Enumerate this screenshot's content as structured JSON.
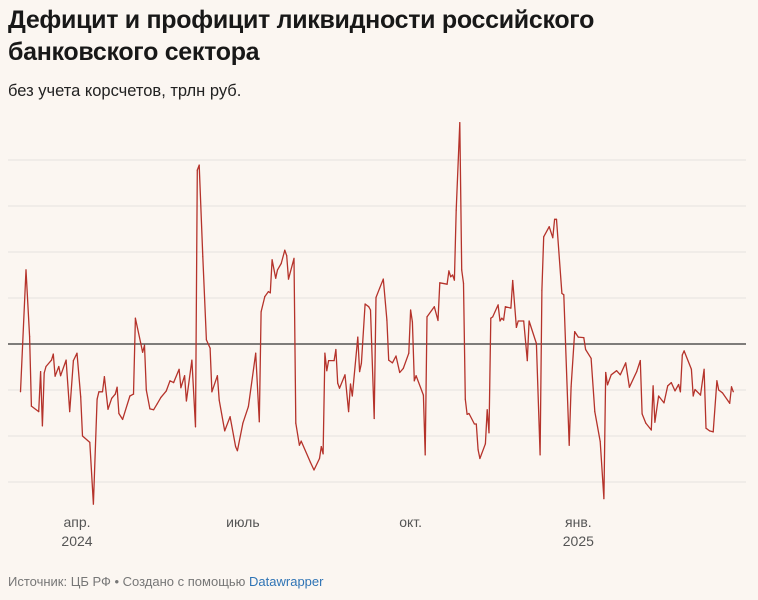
{
  "title": "Дефицит и профицит ликвидности российского банковского сектора",
  "subtitle": "без учета корсчетов, трлн руб.",
  "footer": {
    "source": "Источник: ЦБ РФ • Создано с помощью ",
    "tool_link": "Datawrapper"
  },
  "colors": {
    "line": "#b5332b",
    "zero_line": "#333333",
    "grid": "#e6e2df",
    "background": "#fbf6f1",
    "link": "#2f74b5"
  },
  "chart_data": {
    "type": "line",
    "title": "Дефицит и профицит ликвидности российского банковского сектора",
    "subtitle": "без учета корсчетов, трлн руб.",
    "xlabel": "",
    "ylabel": "",
    "xlim": [
      "2024-03-01",
      "2025-03-27"
    ],
    "ylim": [
      -3.5,
      4.9
    ],
    "y_gridlines": [
      -3,
      -2,
      -1,
      0,
      1,
      2,
      3,
      4
    ],
    "y_tick_labels_shown": false,
    "grid": true,
    "x_ticks": [
      {
        "date": "2024-04-01",
        "label": "апр.",
        "year": "2024"
      },
      {
        "date": "2024-07-01",
        "label": "июль",
        "year": ""
      },
      {
        "date": "2024-10-01",
        "label": "окт.",
        "year": ""
      },
      {
        "date": "2025-01-01",
        "label": "янв.",
        "year": "2025"
      }
    ],
    "series": [
      {
        "points": [
          [
            "2024-03-01",
            -1.04
          ],
          [
            "2024-03-04",
            1.61
          ],
          [
            "2024-03-06",
            0.16
          ],
          [
            "2024-03-07",
            -1.35
          ],
          [
            "2024-03-11",
            -1.47
          ],
          [
            "2024-03-12",
            -0.6
          ],
          [
            "2024-03-13",
            -1.78
          ],
          [
            "2024-03-14",
            -0.63
          ],
          [
            "2024-03-15",
            -0.49
          ],
          [
            "2024-03-18",
            -0.35
          ],
          [
            "2024-03-19",
            -0.22
          ],
          [
            "2024-03-20",
            -0.7
          ],
          [
            "2024-03-22",
            -0.49
          ],
          [
            "2024-03-23",
            -0.69
          ],
          [
            "2024-03-26",
            -0.35
          ],
          [
            "2024-03-28",
            -1.47
          ],
          [
            "2024-03-30",
            -0.36
          ],
          [
            "2024-04-01",
            -0.2
          ],
          [
            "2024-04-03",
            -1.15
          ],
          [
            "2024-04-04",
            -2.0
          ],
          [
            "2024-04-08",
            -2.14
          ],
          [
            "2024-04-10",
            -3.48
          ],
          [
            "2024-04-12",
            -1.2
          ],
          [
            "2024-04-13",
            -1.04
          ],
          [
            "2024-04-15",
            -1.04
          ],
          [
            "2024-04-16",
            -0.71
          ],
          [
            "2024-04-18",
            -1.42
          ],
          [
            "2024-04-20",
            -1.18
          ],
          [
            "2024-04-22",
            -1.09
          ],
          [
            "2024-04-23",
            -0.94
          ],
          [
            "2024-04-24",
            -1.51
          ],
          [
            "2024-04-26",
            -1.64
          ],
          [
            "2024-04-30",
            -1.13
          ],
          [
            "2024-05-02",
            -1.09
          ],
          [
            "2024-05-03",
            0.56
          ],
          [
            "2024-05-06",
            0.01
          ],
          [
            "2024-05-07",
            -0.18
          ],
          [
            "2024-05-08",
            -0.03
          ],
          [
            "2024-05-09",
            -1.0
          ],
          [
            "2024-05-11",
            -1.41
          ],
          [
            "2024-05-13",
            -1.43
          ],
          [
            "2024-05-15",
            -1.3
          ],
          [
            "2024-05-17",
            -1.16
          ],
          [
            "2024-05-20",
            -1.02
          ],
          [
            "2024-05-22",
            -0.8
          ],
          [
            "2024-05-24",
            -0.84
          ],
          [
            "2024-05-27",
            -0.55
          ],
          [
            "2024-05-28",
            -0.95
          ],
          [
            "2024-05-30",
            -0.69
          ],
          [
            "2024-05-31",
            -1.24
          ],
          [
            "2024-06-03",
            -0.35
          ],
          [
            "2024-06-05",
            -1.8
          ],
          [
            "2024-06-06",
            3.78
          ],
          [
            "2024-06-07",
            3.89
          ],
          [
            "2024-06-09",
            1.9
          ],
          [
            "2024-06-11",
            0.09
          ],
          [
            "2024-06-13",
            -0.09
          ],
          [
            "2024-06-14",
            -1.04
          ],
          [
            "2024-06-17",
            -0.69
          ],
          [
            "2024-06-18",
            -1.22
          ],
          [
            "2024-06-21",
            -1.89
          ],
          [
            "2024-06-24",
            -1.58
          ],
          [
            "2024-06-27",
            -2.23
          ],
          [
            "2024-06-28",
            -2.32
          ],
          [
            "2024-07-01",
            -1.72
          ],
          [
            "2024-07-04",
            -1.36
          ],
          [
            "2024-07-08",
            -0.2
          ],
          [
            "2024-07-10",
            -1.69
          ],
          [
            "2024-07-11",
            0.7
          ],
          [
            "2024-07-13",
            1.03
          ],
          [
            "2024-07-15",
            1.14
          ],
          [
            "2024-07-16",
            1.11
          ],
          [
            "2024-07-17",
            1.83
          ],
          [
            "2024-07-19",
            1.43
          ],
          [
            "2024-07-20",
            1.61
          ],
          [
            "2024-07-22",
            1.75
          ],
          [
            "2024-07-24",
            2.04
          ],
          [
            "2024-07-25",
            1.92
          ],
          [
            "2024-07-26",
            1.41
          ],
          [
            "2024-07-29",
            1.86
          ],
          [
            "2024-07-30",
            -1.72
          ],
          [
            "2024-08-01",
            -2.2
          ],
          [
            "2024-08-02",
            -2.11
          ],
          [
            "2024-08-07",
            -2.57
          ],
          [
            "2024-08-09",
            -2.74
          ],
          [
            "2024-08-12",
            -2.49
          ],
          [
            "2024-08-13",
            -2.23
          ],
          [
            "2024-08-14",
            -2.39
          ],
          [
            "2024-08-15",
            -0.2
          ],
          [
            "2024-08-16",
            -0.58
          ],
          [
            "2024-08-17",
            -0.36
          ],
          [
            "2024-08-20",
            -0.36
          ],
          [
            "2024-08-21",
            -0.12
          ],
          [
            "2024-08-22",
            -0.85
          ],
          [
            "2024-08-23",
            -0.96
          ],
          [
            "2024-08-26",
            -0.67
          ],
          [
            "2024-08-28",
            -1.47
          ],
          [
            "2024-08-29",
            -0.87
          ],
          [
            "2024-08-30",
            -1.13
          ],
          [
            "2024-09-02",
            0.15
          ],
          [
            "2024-09-03",
            -0.6
          ],
          [
            "2024-09-04",
            -0.42
          ],
          [
            "2024-09-06",
            0.87
          ],
          [
            "2024-09-08",
            0.81
          ],
          [
            "2024-09-09",
            0.74
          ],
          [
            "2024-09-11",
            -1.62
          ],
          [
            "2024-09-12",
            1.01
          ],
          [
            "2024-09-14",
            1.21
          ],
          [
            "2024-09-16",
            1.41
          ],
          [
            "2024-09-18",
            0.52
          ],
          [
            "2024-09-19",
            -0.35
          ],
          [
            "2024-09-21",
            -0.41
          ],
          [
            "2024-09-23",
            -0.26
          ],
          [
            "2024-09-25",
            -0.62
          ],
          [
            "2024-09-27",
            -0.53
          ],
          [
            "2024-09-30",
            -0.2
          ],
          [
            "2024-10-01",
            0.74
          ],
          [
            "2024-10-02",
            0.48
          ],
          [
            "2024-10-03",
            -0.8
          ],
          [
            "2024-10-04",
            -0.69
          ],
          [
            "2024-10-08",
            -1.11
          ],
          [
            "2024-10-09",
            -2.41
          ],
          [
            "2024-10-10",
            0.59
          ],
          [
            "2024-10-14",
            0.81
          ],
          [
            "2024-10-16",
            0.51
          ],
          [
            "2024-10-17",
            1.33
          ],
          [
            "2024-10-21",
            1.3
          ],
          [
            "2024-10-22",
            1.59
          ],
          [
            "2024-10-23",
            1.46
          ],
          [
            "2024-10-24",
            1.5
          ],
          [
            "2024-10-25",
            1.39
          ],
          [
            "2024-10-26",
            2.91
          ],
          [
            "2024-10-28",
            4.81
          ],
          [
            "2024-10-29",
            1.61
          ],
          [
            "2024-10-30",
            1.32
          ],
          [
            "2024-10-31",
            -1.2
          ],
          [
            "2024-11-01",
            -1.53
          ],
          [
            "2024-11-02",
            -1.51
          ],
          [
            "2024-11-05",
            -1.74
          ],
          [
            "2024-11-06",
            -1.74
          ],
          [
            "2024-11-07",
            -2.3
          ],
          [
            "2024-11-08",
            -2.49
          ],
          [
            "2024-11-11",
            -2.17
          ],
          [
            "2024-11-12",
            -1.43
          ],
          [
            "2024-11-13",
            -1.93
          ],
          [
            "2024-11-14",
            0.56
          ],
          [
            "2024-11-15",
            0.59
          ],
          [
            "2024-11-18",
            0.85
          ],
          [
            "2024-11-19",
            0.5
          ],
          [
            "2024-11-20",
            0.56
          ],
          [
            "2024-11-21",
            0.52
          ],
          [
            "2024-11-22",
            0.81
          ],
          [
            "2024-11-25",
            0.78
          ],
          [
            "2024-11-26",
            1.38
          ],
          [
            "2024-11-28",
            0.36
          ],
          [
            "2024-11-29",
            0.5
          ],
          [
            "2024-12-02",
            0.5
          ],
          [
            "2024-12-04",
            -0.36
          ],
          [
            "2024-12-05",
            0.5
          ],
          [
            "2024-12-09",
            0.01
          ],
          [
            "2024-12-11",
            -2.41
          ],
          [
            "2024-12-12",
            1.17
          ],
          [
            "2024-12-13",
            2.33
          ],
          [
            "2024-12-16",
            2.55
          ],
          [
            "2024-12-18",
            2.31
          ],
          [
            "2024-12-19",
            2.71
          ],
          [
            "2024-12-20",
            2.71
          ],
          [
            "2024-12-23",
            1.1
          ],
          [
            "2024-12-24",
            1.07
          ],
          [
            "2024-12-27",
            -2.2
          ],
          [
            "2024-12-28",
            -0.93
          ],
          [
            "2024-12-30",
            0.27
          ],
          [
            "2025-01-01",
            0.15
          ],
          [
            "2025-01-04",
            0.14
          ],
          [
            "2025-01-05",
            -0.12
          ],
          [
            "2025-01-08",
            -0.31
          ],
          [
            "2025-01-10",
            -1.47
          ],
          [
            "2025-01-13",
            -2.12
          ],
          [
            "2025-01-15",
            -3.36
          ],
          [
            "2025-01-16",
            -0.62
          ],
          [
            "2025-01-17",
            -0.89
          ],
          [
            "2025-01-19",
            -0.67
          ],
          [
            "2025-01-22",
            -0.58
          ],
          [
            "2025-01-24",
            -0.67
          ],
          [
            "2025-01-27",
            -0.41
          ],
          [
            "2025-01-29",
            -0.94
          ],
          [
            "2025-02-02",
            -0.6
          ],
          [
            "2025-02-04",
            -0.36
          ],
          [
            "2025-02-05",
            -1.52
          ],
          [
            "2025-02-07",
            -1.72
          ],
          [
            "2025-02-10",
            -1.87
          ],
          [
            "2025-02-11",
            -0.91
          ],
          [
            "2025-02-12",
            -1.7
          ],
          [
            "2025-02-14",
            -1.13
          ],
          [
            "2025-02-17",
            -1.28
          ],
          [
            "2025-02-19",
            -0.91
          ],
          [
            "2025-02-21",
            -0.84
          ],
          [
            "2025-02-23",
            -1.02
          ],
          [
            "2025-02-25",
            -0.88
          ],
          [
            "2025-02-26",
            -1.04
          ],
          [
            "2025-02-27",
            -0.24
          ],
          [
            "2025-02-28",
            -0.15
          ],
          [
            "2025-03-04",
            -0.55
          ],
          [
            "2025-03-05",
            -1.13
          ],
          [
            "2025-03-06",
            -0.99
          ],
          [
            "2025-03-09",
            -1.11
          ],
          [
            "2025-03-11",
            -0.55
          ],
          [
            "2025-03-12",
            -1.83
          ],
          [
            "2025-03-14",
            -1.89
          ],
          [
            "2025-03-16",
            -1.91
          ],
          [
            "2025-03-18",
            -0.8
          ],
          [
            "2025-03-19",
            -1.0
          ],
          [
            "2025-03-21",
            -1.06
          ],
          [
            "2025-03-25",
            -1.29
          ],
          [
            "2025-03-26",
            -0.93
          ],
          [
            "2025-03-27",
            -1.04
          ]
        ]
      }
    ]
  }
}
